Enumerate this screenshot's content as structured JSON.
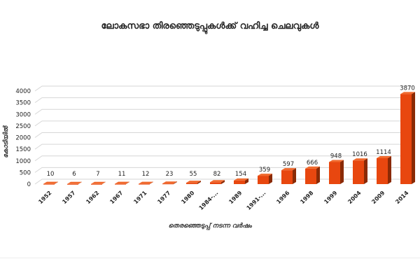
{
  "chart_data": {
    "type": "bar",
    "title": "ലോകസഭാ തിരഞ്ഞെടുപ്പുകൾക്ക് വഹിച്ച ചെലവുകൾ",
    "xlabel": "തെരഞ്ഞെടുപ്പ് നടന്ന വർഷം",
    "ylabel": "കോടിയിൽ",
    "categories": [
      "1952",
      "1957",
      "1962",
      "1967",
      "1971",
      "1977",
      "1980",
      "1984-...",
      "1989",
      "1991-...",
      "1996",
      "1998",
      "1999",
      "2004",
      "2009",
      "2014"
    ],
    "values": [
      10,
      6,
      7,
      11,
      12,
      23,
      55,
      82,
      154,
      359,
      597,
      666,
      948,
      1016,
      1114,
      3870
    ],
    "ylim": [
      0,
      4000
    ],
    "yticks": [
      0,
      500,
      1000,
      1500,
      2000,
      2500,
      3000,
      3500,
      4000
    ],
    "grid": true,
    "legend": "none",
    "colors": {
      "bar_front": "#e8470f",
      "bar_side": "#8a2a05",
      "bar_top": "#f06a2e",
      "grid": "#d6d6d6"
    }
  }
}
